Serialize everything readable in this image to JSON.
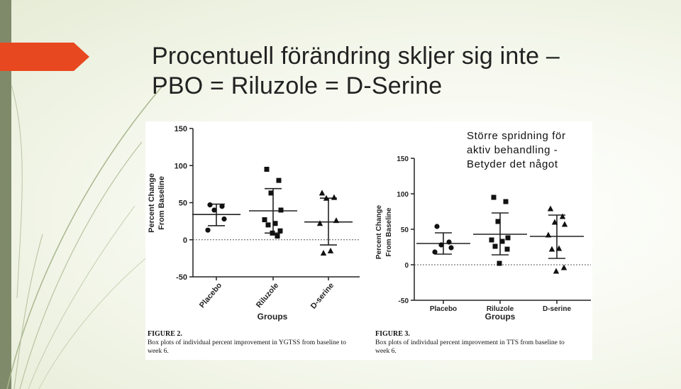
{
  "slide": {
    "title_lines": [
      "Procentuell förändring skljer sig inte –",
      "PBO = Riluzole = D-Serine"
    ],
    "callout_lines": [
      "Större spridning för",
      "aktiv behandling -",
      "Betyder det något"
    ]
  },
  "chart_data": [
    {
      "type": "scatter",
      "subtype": "dot plot with mean and error bars",
      "caption_label": "FIGURE 2.",
      "caption_text": "Box plots of individual percent improvement in YGTSS from baseline to week 6.",
      "xlabel": "Groups",
      "ylabel": [
        "Percent Change",
        "From Baseline"
      ],
      "ylim": [
        -50,
        150
      ],
      "yticks": [
        -50,
        0,
        50,
        100,
        150
      ],
      "reference_line": 0,
      "groups": [
        {
          "name": "Placebo",
          "marker": "circle",
          "points": [
            47,
            45,
            40,
            28,
            13
          ],
          "mean": 34,
          "err_low": 19,
          "err_high": 48
        },
        {
          "name": "Riluzole",
          "marker": "square",
          "points": [
            95,
            80,
            63,
            40,
            27,
            22,
            20,
            12,
            9,
            5
          ],
          "mean": 39,
          "err_low": 9,
          "err_high": 69
        },
        {
          "name": "D-serine",
          "marker": "triangle",
          "points": [
            63,
            57,
            56,
            26,
            22,
            -15,
            -18
          ],
          "mean": 24,
          "err_low": -7,
          "err_high": 56
        }
      ]
    },
    {
      "type": "scatter",
      "subtype": "dot plot with mean and error bars",
      "caption_label": "FIGURE 3.",
      "caption_text": "Box plots of individual percent improvement in TTS from baseline to week 6.",
      "xlabel": "Groups",
      "ylabel": [
        "Percent Change",
        "From Baseline"
      ],
      "ylim": [
        -50,
        150
      ],
      "yticks": [
        -50,
        0,
        50,
        100,
        150
      ],
      "reference_line": 0,
      "groups": [
        {
          "name": "Placebo",
          "marker": "circle",
          "points": [
            54,
            32,
            28,
            24,
            18
          ],
          "mean": 30,
          "err_low": 15,
          "err_high": 45
        },
        {
          "name": "Riluzole",
          "marker": "square",
          "points": [
            95,
            89,
            61,
            38,
            35,
            33,
            26,
            22,
            2
          ],
          "mean": 43,
          "err_low": 14,
          "err_high": 73
        },
        {
          "name": "D-serine",
          "marker": "triangle",
          "points": [
            79,
            68,
            60,
            57,
            42,
            23,
            22,
            -4,
            -9
          ],
          "mean": 40,
          "err_low": 9,
          "err_high": 70
        }
      ]
    }
  ]
}
